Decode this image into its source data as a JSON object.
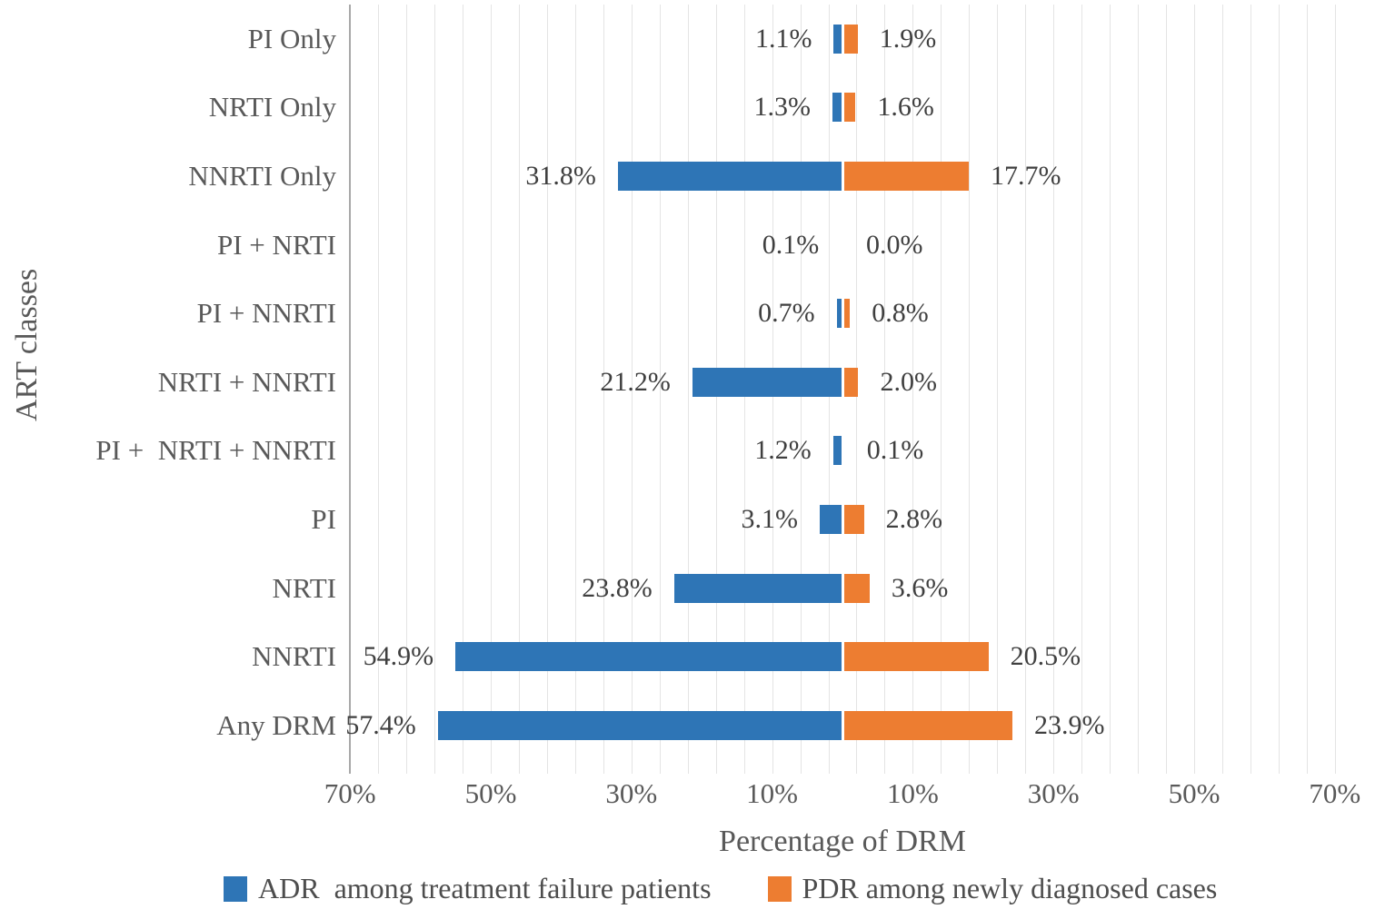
{
  "chart_data": {
    "type": "bar",
    "subtype": "diverging-horizontal-tornado",
    "title": "",
    "xlabel": "Percentage of DRM",
    "ylabel": "ART classes",
    "categories": [
      "PI Only",
      "NRTI Only",
      "NNRTI Only",
      "PI + NRTI",
      "PI + NNRTI",
      "NRTI + NNRTI",
      "PI +  NRTI + NNRTI",
      "PI",
      "NRTI",
      "NNRTI",
      "Any DRM"
    ],
    "series": [
      {
        "name": "ADR  among treatment failure patients",
        "direction": "left",
        "color": "#2E75B6",
        "values": [
          1.1,
          1.3,
          31.8,
          0.1,
          0.7,
          21.2,
          1.2,
          3.1,
          23.8,
          54.9,
          57.4
        ],
        "labels": [
          "1.1%",
          "1.3%",
          "31.8%",
          "0.1%",
          "0.7%",
          "21.2%",
          "1.2%",
          "3.1%",
          "23.8%",
          "54.9%",
          "57.4%"
        ]
      },
      {
        "name": "PDR among newly diagnosed cases",
        "direction": "right",
        "color": "#ED7D31",
        "values": [
          1.9,
          1.6,
          17.7,
          0.0,
          0.8,
          2.0,
          0.1,
          2.8,
          3.6,
          20.5,
          23.9
        ],
        "labels": [
          "1.9%",
          "1.6%",
          "17.7%",
          "0.0%",
          "0.8%",
          "2.0%",
          "0.1%",
          "2.8%",
          "3.6%",
          "20.5%",
          "23.9%"
        ]
      }
    ],
    "x_axis": {
      "range": [
        -70,
        70
      ],
      "major_unit": 20,
      "minor_unit": 4,
      "grid": true,
      "ticks": [
        {
          "value": -70,
          "label": "70%"
        },
        {
          "value": -50,
          "label": "50%"
        },
        {
          "value": -30,
          "label": "30%"
        },
        {
          "value": -10,
          "label": "10%"
        },
        {
          "value": 10,
          "label": "10%"
        },
        {
          "value": 30,
          "label": "30%"
        },
        {
          "value": 50,
          "label": "50%"
        },
        {
          "value": 70,
          "label": "70%"
        }
      ]
    },
    "legend": {
      "position": "bottom"
    }
  }
}
